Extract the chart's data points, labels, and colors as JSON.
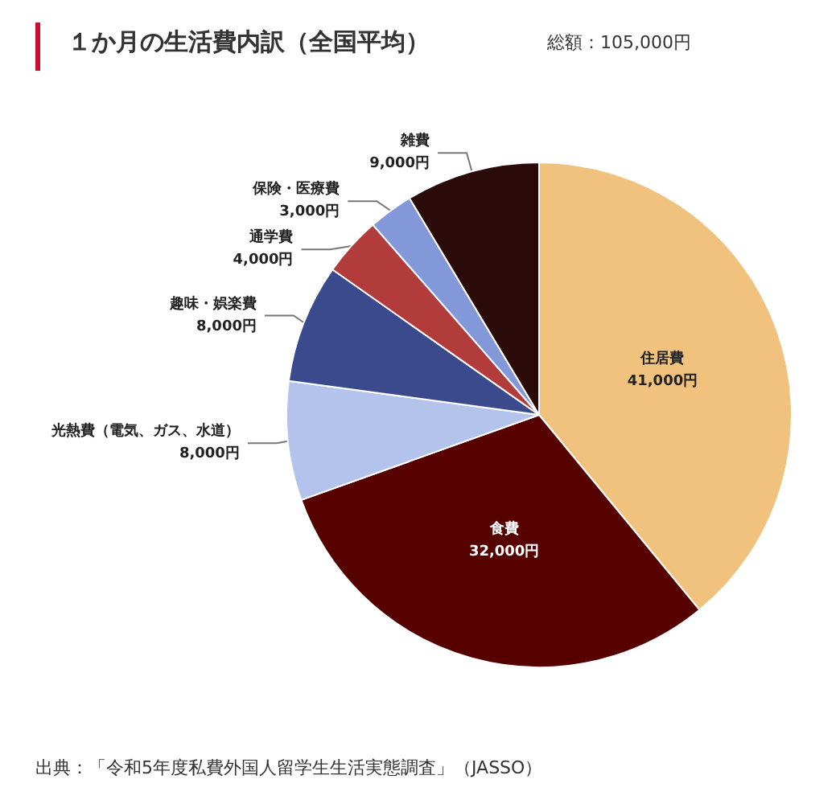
{
  "chart_data": {
    "type": "pie",
    "title": "１か月の生活費内訳（全国平均）",
    "subtitle": "総額：105,000円",
    "categories": [
      "住居費",
      "食費",
      "光熱費（電気、ガス、水道）",
      "趣味・娯楽費",
      "通学費",
      "保険・医療費",
      "雑費"
    ],
    "values": [
      41000,
      32000,
      8000,
      8000,
      4000,
      3000,
      9000
    ],
    "value_labels": [
      "41,000円",
      "32,000円",
      "8,000円",
      "8,000円",
      "4,000円",
      "3,000円",
      "9,000円"
    ],
    "colors": [
      "#f1c27d",
      "#560000",
      "#b3c3ec",
      "#3b4a8c",
      "#b23b3b",
      "#8398d8",
      "#2b0a0a"
    ],
    "annotations": [
      "出典：「令和5年度私費外国人留学生生活実態調査」（JASSO）"
    ],
    "legend": false
  }
}
